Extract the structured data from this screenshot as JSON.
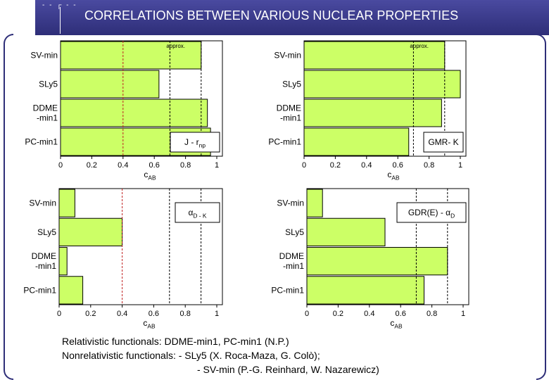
{
  "header": {
    "title": "CORRELATIONS BETWEEN VARIOUS NUCLEAR PROPERTIES"
  },
  "notes": {
    "line1": "Relativistic functionals: DDME-min1, PC-min1 (N.P.)",
    "line2": "Nonrelativistic functionals: - SLy5 (X. Roca-Maza, G. Colò);",
    "line3": "- SV-min (P.-G. Reinhard, W. Nazarewicz)"
  },
  "colors": {
    "bar": "#ccff66",
    "bar_stroke": "#000000",
    "title_bg": "#3a3a8c"
  },
  "chart_data": [
    {
      "type": "bar",
      "orientation": "horizontal",
      "categories": [
        "SV-min",
        "SLy5",
        "DDME\n-min1",
        "PC-min1"
      ],
      "values": [
        0.9,
        0.63,
        0.94,
        0.96
      ],
      "xlabel": "c_AB",
      "xlim": [
        0,
        1
      ],
      "ticks": [
        "0",
        "0.2",
        "0.4",
        "0.6",
        "0.8",
        "1"
      ],
      "legend": "J - r_np",
      "legend_pos": "bottom-right",
      "annotation": "approx.",
      "ref_lines": [
        0.4,
        0.7,
        0.9
      ]
    },
    {
      "type": "bar",
      "orientation": "horizontal",
      "categories": [
        "SV-min",
        "SLy5",
        "DDME\n-min1",
        "PC-min1"
      ],
      "values": [
        0.9,
        1.0,
        0.88,
        0.67
      ],
      "xlabel": "c_AB",
      "xlim": [
        0,
        1
      ],
      "ticks": [
        "0",
        "0.2",
        "0.4",
        "0.6",
        "0.8",
        "1"
      ],
      "legend": "GMR- K",
      "legend_pos": "bottom-right",
      "annotation": "approx.",
      "ref_lines": [
        0.7,
        0.9
      ]
    },
    {
      "type": "bar",
      "orientation": "horizontal",
      "categories": [
        "SV-min",
        "SLy5",
        "DDME\n-min1",
        "PC-min1"
      ],
      "values": [
        0.1,
        0.4,
        0.05,
        0.15
      ],
      "xlabel": "c_AB",
      "xlim": [
        0,
        1
      ],
      "ticks": [
        "0",
        "0.2",
        "0.4",
        "0.6",
        "0.8",
        "1"
      ],
      "legend": "α_D - K",
      "legend_pos": "top-right",
      "annotation": "",
      "ref_lines": [
        0.4,
        0.7,
        0.9
      ]
    },
    {
      "type": "bar",
      "orientation": "horizontal",
      "categories": [
        "SV-min",
        "SLy5",
        "DDME\n-min1",
        "PC-min1"
      ],
      "values": [
        0.1,
        0.5,
        0.9,
        0.75
      ],
      "xlabel": "c_AB",
      "xlim": [
        0,
        1
      ],
      "ticks": [
        "0",
        "0.2",
        "0.4",
        "0.6",
        "0.8",
        "1"
      ],
      "legend": "GDR(E) - α_D",
      "legend_pos": "top-right",
      "annotation": "",
      "ref_lines": [
        0.7,
        0.9
      ]
    }
  ]
}
